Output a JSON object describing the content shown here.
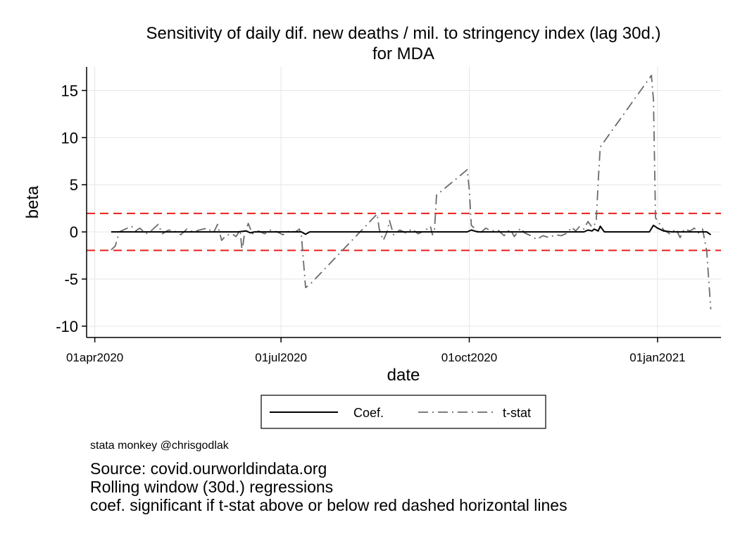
{
  "chart_data": {
    "type": "line",
    "title": "Sensitivity of daily dif. new deaths / mil. to stringency index (lag 30d.)",
    "subtitle": "for MDA",
    "xlabel": "date",
    "ylabel": "beta",
    "x_ticks": [
      {
        "label": "01apr2020",
        "date": "2020-04-01"
      },
      {
        "label": "01jul2020",
        "date": "2020-07-01"
      },
      {
        "label": "01oct2020",
        "date": "2020-10-01"
      },
      {
        "label": "01jan2021",
        "date": "2021-01-01"
      }
    ],
    "xlim": [
      "2020-03-28",
      "2021-02-01"
    ],
    "y_ticks": [
      15,
      10,
      5,
      0,
      -5,
      -10
    ],
    "ylim": [
      -11.2,
      17.5
    ],
    "grid": true,
    "reference_lines": [
      {
        "y": 1.96,
        "color": "#e8201c",
        "style": "dashed"
      },
      {
        "y": -1.96,
        "color": "#e8201c",
        "style": "dashed"
      }
    ],
    "legend_position": "bottom",
    "series": [
      {
        "name": "Coef.",
        "color": "#000000",
        "style": "solid",
        "points": [
          [
            "2020-04-09",
            0
          ],
          [
            "2020-05-10",
            0
          ],
          [
            "2020-06-10",
            0
          ],
          [
            "2020-06-14",
            0.1
          ],
          [
            "2020-06-16",
            -0.1
          ],
          [
            "2020-06-18",
            0
          ],
          [
            "2020-07-06",
            0
          ],
          [
            "2020-07-11",
            0
          ],
          [
            "2020-07-13",
            -0.25
          ],
          [
            "2020-07-15",
            0
          ],
          [
            "2020-08-20",
            0
          ],
          [
            "2020-09-15",
            0
          ],
          [
            "2020-09-30",
            0
          ],
          [
            "2020-10-02",
            0.2
          ],
          [
            "2020-10-05",
            0
          ],
          [
            "2020-11-15",
            0
          ],
          [
            "2020-11-26",
            0
          ],
          [
            "2020-11-28",
            0.2
          ],
          [
            "2020-11-30",
            0.1
          ],
          [
            "2020-12-01",
            0.3
          ],
          [
            "2020-12-03",
            0.1
          ],
          [
            "2020-12-04",
            0.6
          ],
          [
            "2020-12-06",
            0
          ],
          [
            "2020-12-28",
            0
          ],
          [
            "2020-12-30",
            0.7
          ],
          [
            "2021-01-01",
            0.4
          ],
          [
            "2021-01-04",
            0.1
          ],
          [
            "2021-01-08",
            0
          ],
          [
            "2021-01-25",
            0
          ],
          [
            "2021-01-27",
            -0.3
          ]
        ]
      },
      {
        "name": "t-stat",
        "color": "#6b6b6b",
        "style": "dashdot",
        "points": [
          [
            "2020-04-09",
            -1.9
          ],
          [
            "2020-04-11",
            -1.5
          ],
          [
            "2020-04-13",
            0
          ],
          [
            "2020-04-16",
            0.3
          ],
          [
            "2020-04-19",
            0.6
          ],
          [
            "2020-04-21",
            0.1
          ],
          [
            "2020-04-23",
            0.4
          ],
          [
            "2020-04-26",
            -0.2
          ],
          [
            "2020-04-29",
            0.2
          ],
          [
            "2020-05-02",
            0.8
          ],
          [
            "2020-05-04",
            -0.2
          ],
          [
            "2020-05-07",
            0.2
          ],
          [
            "2020-05-10",
            0.1
          ],
          [
            "2020-05-13",
            -0.3
          ],
          [
            "2020-05-16",
            0.3
          ],
          [
            "2020-05-19",
            0
          ],
          [
            "2020-05-22",
            0.2
          ],
          [
            "2020-05-26",
            0.4
          ],
          [
            "2020-05-29",
            -0.1
          ],
          [
            "2020-05-31",
            0.8
          ],
          [
            "2020-06-02",
            -0.9
          ],
          [
            "2020-06-04",
            -0.4
          ],
          [
            "2020-06-07",
            -0.2
          ],
          [
            "2020-06-09",
            -0.5
          ],
          [
            "2020-06-11",
            0.2
          ],
          [
            "2020-06-12",
            -2.1
          ],
          [
            "2020-06-13",
            -0.4
          ],
          [
            "2020-06-15",
            0.9
          ],
          [
            "2020-06-17",
            -0.2
          ],
          [
            "2020-06-20",
            0.1
          ],
          [
            "2020-06-23",
            -0.2
          ],
          [
            "2020-06-26",
            0.2
          ],
          [
            "2020-06-29",
            0
          ],
          [
            "2020-07-02",
            -0.3
          ],
          [
            "2020-07-05",
            0.1
          ],
          [
            "2020-07-08",
            0
          ],
          [
            "2020-07-10",
            0.3
          ],
          [
            "2020-07-11",
            -0.5
          ],
          [
            "2020-07-13",
            -5.9
          ],
          [
            "2020-07-15",
            -5.6
          ],
          [
            "2020-08-17",
            1.9
          ],
          [
            "2020-08-18",
            0.3
          ],
          [
            "2020-08-20",
            -0.9
          ],
          [
            "2020-08-22",
            0.1
          ],
          [
            "2020-08-23",
            1.2
          ],
          [
            "2020-08-25",
            -0.3
          ],
          [
            "2020-08-28",
            0.2
          ],
          [
            "2020-08-31",
            -0.1
          ],
          [
            "2020-09-03",
            0.3
          ],
          [
            "2020-09-06",
            -0.2
          ],
          [
            "2020-09-09",
            0.1
          ],
          [
            "2020-09-12",
            0.6
          ],
          [
            "2020-09-13",
            -0.3
          ],
          [
            "2020-09-14",
            0.2
          ],
          [
            "2020-09-15",
            3.9
          ],
          [
            "2020-09-30",
            6.6
          ],
          [
            "2020-10-01",
            4.5
          ],
          [
            "2020-10-02",
            0.7
          ],
          [
            "2020-10-04",
            0.3
          ],
          [
            "2020-10-06",
            -0.2
          ],
          [
            "2020-10-09",
            0.4
          ],
          [
            "2020-10-12",
            0.1
          ],
          [
            "2020-10-15",
            0.2
          ],
          [
            "2020-10-18",
            -0.4
          ],
          [
            "2020-10-21",
            0.3
          ],
          [
            "2020-10-23",
            -0.5
          ],
          [
            "2020-10-26",
            0.4
          ],
          [
            "2020-10-28",
            -0.1
          ],
          [
            "2020-10-31",
            -0.4
          ],
          [
            "2020-11-03",
            -0.8
          ],
          [
            "2020-11-06",
            -0.4
          ],
          [
            "2020-11-09",
            -0.6
          ],
          [
            "2020-11-12",
            -0.3
          ],
          [
            "2020-11-15",
            -0.4
          ],
          [
            "2020-11-18",
            -0.1
          ],
          [
            "2020-11-20",
            0.5
          ],
          [
            "2020-11-22",
            0.1
          ],
          [
            "2020-11-24",
            0.6
          ],
          [
            "2020-11-26",
            0.3
          ],
          [
            "2020-11-28",
            1.1
          ],
          [
            "2020-11-30",
            0.5
          ],
          [
            "2020-12-02",
            1.0
          ],
          [
            "2020-12-03",
            5.3
          ],
          [
            "2020-12-04",
            9.0
          ],
          [
            "2020-12-29",
            16.6
          ],
          [
            "2020-12-30",
            14.0
          ],
          [
            "2020-12-31",
            1.5
          ],
          [
            "2021-01-01",
            1.2
          ],
          [
            "2021-01-04",
            0.2
          ],
          [
            "2021-01-07",
            -0.2
          ],
          [
            "2021-01-10",
            0.3
          ],
          [
            "2021-01-12",
            -0.6
          ],
          [
            "2021-01-14",
            0.3
          ],
          [
            "2021-01-17",
            0.1
          ],
          [
            "2021-01-19",
            0.4
          ],
          [
            "2021-01-21",
            -0.1
          ],
          [
            "2021-01-23",
            0.3
          ],
          [
            "2021-01-25",
            -2.0
          ],
          [
            "2021-01-27",
            -8.2
          ]
        ]
      }
    ]
  },
  "notes": {
    "credit": "stata monkey @chrisgodlak",
    "lines": [
      "Source: covid.ourworldindata.org",
      "Rolling window (30d.) regressions",
      "coef. significant if t-stat above or below red dashed horizontal lines"
    ]
  }
}
